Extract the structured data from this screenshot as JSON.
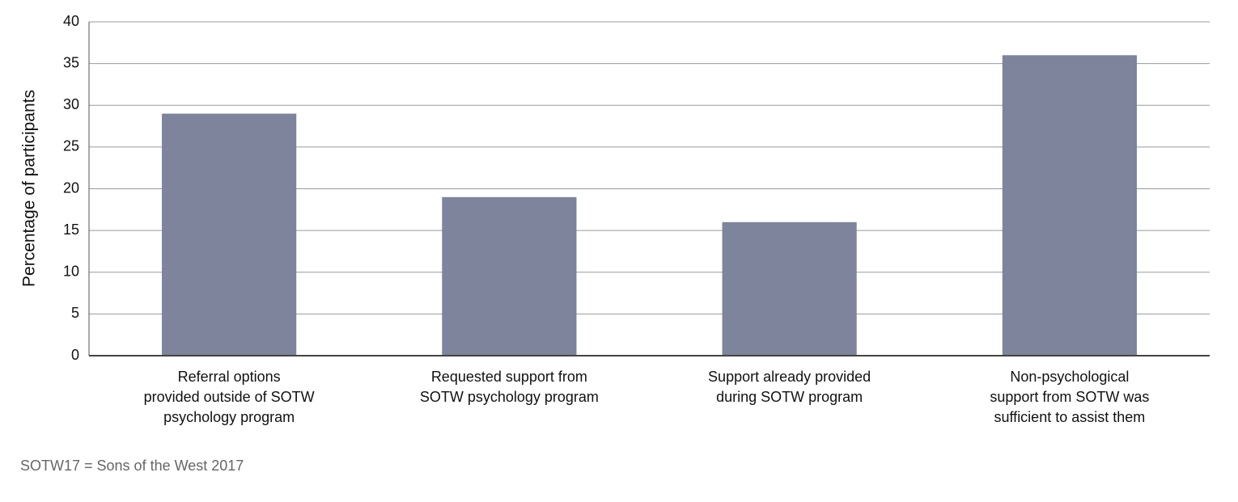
{
  "chart_data": {
    "type": "bar",
    "y_label": "Percentage of participants",
    "categories": [
      "Referral options\nprovided outside of SOTW\npsychology program",
      "Requested support from\nSOTW psychology program",
      "Support already provided\nduring SOTW program",
      "Non-psychological\nsupport from SOTW was\nsufficient to assist them"
    ],
    "values": [
      29,
      19,
      16,
      36
    ],
    "color": "#7e849b",
    "ylim": [
      0,
      40
    ],
    "yticks": [
      0,
      5,
      10,
      15,
      20,
      25,
      30,
      35,
      40
    ],
    "grid": true,
    "footnote": "SOTW17 = Sons of the West 2017"
  }
}
